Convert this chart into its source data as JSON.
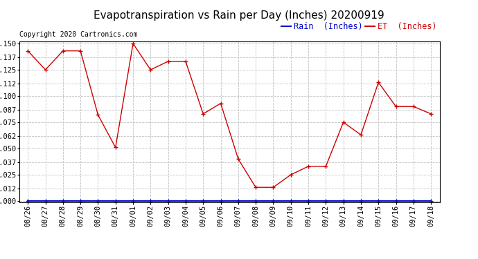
{
  "title": "Evapotranspiration vs Rain per Day (Inches) 20200919",
  "copyright": "Copyright 2020 Cartronics.com",
  "legend_rain_label": "Rain  (Inches)",
  "legend_et_label": "ET  (Inches)",
  "x_labels": [
    "08/26",
    "08/27",
    "08/28",
    "08/29",
    "08/30",
    "08/31",
    "09/01",
    "09/02",
    "09/03",
    "09/04",
    "09/05",
    "09/06",
    "09/07",
    "09/08",
    "09/09",
    "09/10",
    "09/11",
    "09/12",
    "09/13",
    "09/14",
    "09/15",
    "09/16",
    "09/17",
    "09/18"
  ],
  "et_values": [
    0.143,
    0.125,
    0.143,
    0.143,
    0.082,
    0.051,
    0.15,
    0.125,
    0.133,
    0.133,
    0.083,
    0.093,
    0.04,
    0.013,
    0.013,
    0.025,
    0.033,
    0.033,
    0.075,
    0.063,
    0.113,
    0.09,
    0.09,
    0.083
  ],
  "rain_values": [
    0.0,
    0.0,
    0.0,
    0.0,
    0.0,
    0.0,
    0.0,
    0.0,
    0.0,
    0.0,
    0.0,
    0.0,
    0.0,
    0.0,
    0.0,
    0.0,
    0.0,
    0.0,
    0.0,
    0.0,
    0.0,
    0.0,
    0.0,
    0.0
  ],
  "et_color": "#cc0000",
  "rain_color": "#0000cc",
  "ylim_max": 0.15,
  "yticks": [
    0.0,
    0.012,
    0.025,
    0.037,
    0.05,
    0.062,
    0.075,
    0.087,
    0.1,
    0.112,
    0.125,
    0.137,
    0.15
  ],
  "background_color": "#ffffff",
  "grid_color": "#c0c0c0",
  "title_fontsize": 11,
  "tick_fontsize": 7.5,
  "legend_fontsize": 8.5,
  "copyright_fontsize": 7
}
